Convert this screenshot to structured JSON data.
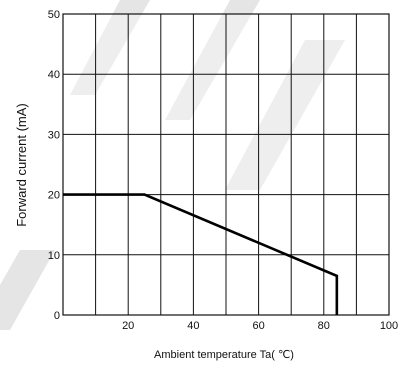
{
  "chart_data": {
    "type": "line",
    "title": "",
    "xlabel": "Ambient temperature Ta( ℃)",
    "ylabel": "Forward current (mA)",
    "xlim": [
      0,
      100
    ],
    "ylim": [
      0,
      50
    ],
    "grid": true,
    "x_ticks": [
      "20",
      "40",
      "60",
      "80",
      "100"
    ],
    "y_ticks": [
      "0",
      "10",
      "20",
      "30",
      "40",
      "50"
    ],
    "series": [
      {
        "x": [
          0,
          25,
          84,
          84
        ],
        "y": [
          20,
          20,
          6.5,
          0
        ]
      }
    ]
  }
}
